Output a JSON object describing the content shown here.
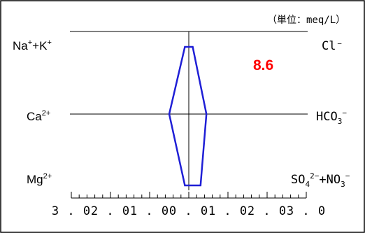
{
  "chart_data": {
    "type": "line",
    "title": "",
    "unit_note": "（単位：meq/L）",
    "annotation": {
      "text": "8.6",
      "color": "#ff0000"
    },
    "left_labels": [
      {
        "ion": "Na",
        "sup": "+",
        "tail": "+K",
        "sup2": "+"
      },
      {
        "ion": "Ca",
        "sup": "2+",
        "tail": "",
        "sup2": ""
      },
      {
        "ion": "Mg",
        "sup": "2+",
        "tail": "",
        "sup2": ""
      }
    ],
    "right_labels": [
      {
        "text": "Cl⁻"
      },
      {
        "text": "HCO",
        "sub": "3",
        "sup": "−"
      },
      {
        "text": "SO",
        "sub": "4",
        "sup": "2−",
        "tail": "+NO",
        "sub2": "3",
        "sup2": "−"
      }
    ],
    "x_ticks": [
      "3.0",
      "2.0",
      "1.0",
      "0.0",
      "1.0",
      "2.0",
      "3.0"
    ],
    "xlim": [
      -3,
      3
    ],
    "series": [
      {
        "color": "#1f1fd6",
        "cations": [
          0.1,
          0.5,
          0.1
        ],
        "anions": [
          0.1,
          0.45,
          0.3
        ]
      }
    ]
  }
}
